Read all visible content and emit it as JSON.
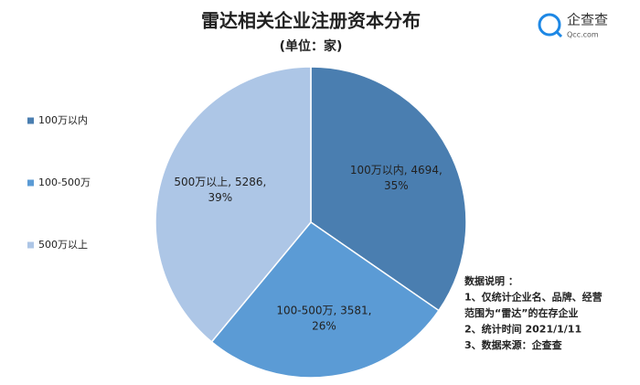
{
  "chart_data": {
    "type": "pie",
    "title": "雷达相关企业注册资本分布",
    "subtitle": "(单位：家)",
    "categories": [
      "100万以内",
      "100-500万",
      "500万以上"
    ],
    "values": [
      4694,
      3581,
      5286
    ],
    "value_labels": [
      "100万以内, 4694,\n35%",
      "100-500万, 3581,\n26%",
      "500万以上, 5286,\n39%"
    ],
    "colors": [
      "#4a7eb0",
      "#5b9bd5",
      "#adc6e6"
    ],
    "legend": "left",
    "notes": [
      "数据说明 ：",
      "1、仅统计企业名、品牌、经营",
      "范围为“雷达”的在存企业",
      "2、统计时间  2021/1/11",
      "3、数据来源：企查查"
    ]
  },
  "logo": {
    "name": "企查查",
    "url": "Qcc.com"
  }
}
